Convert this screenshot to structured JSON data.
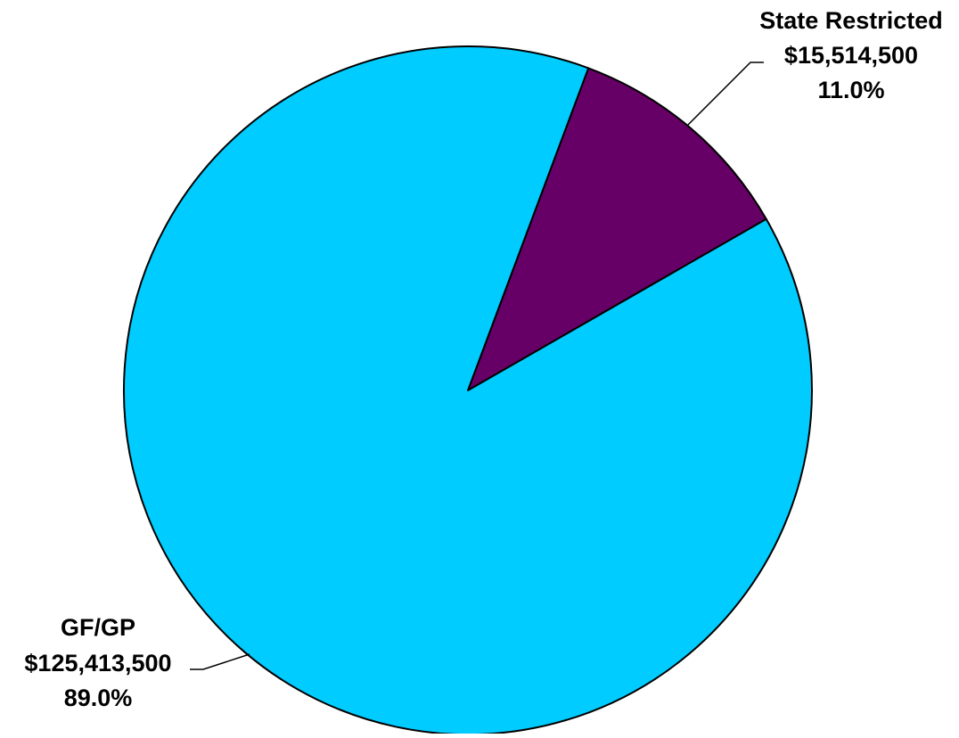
{
  "chart_data": {
    "type": "pie",
    "title": "",
    "slices": [
      {
        "name": "State Restricted",
        "value": 15514500,
        "value_label": "$15,514,500",
        "percent": 11.0,
        "percent_label": "11.0%",
        "color": "#660066"
      },
      {
        "name": "GF/GP",
        "value": 125413500,
        "value_label": "$125,413,500",
        "percent": 89.0,
        "percent_label": "89.0%",
        "color": "#00CCFF"
      }
    ],
    "legend": "none"
  }
}
